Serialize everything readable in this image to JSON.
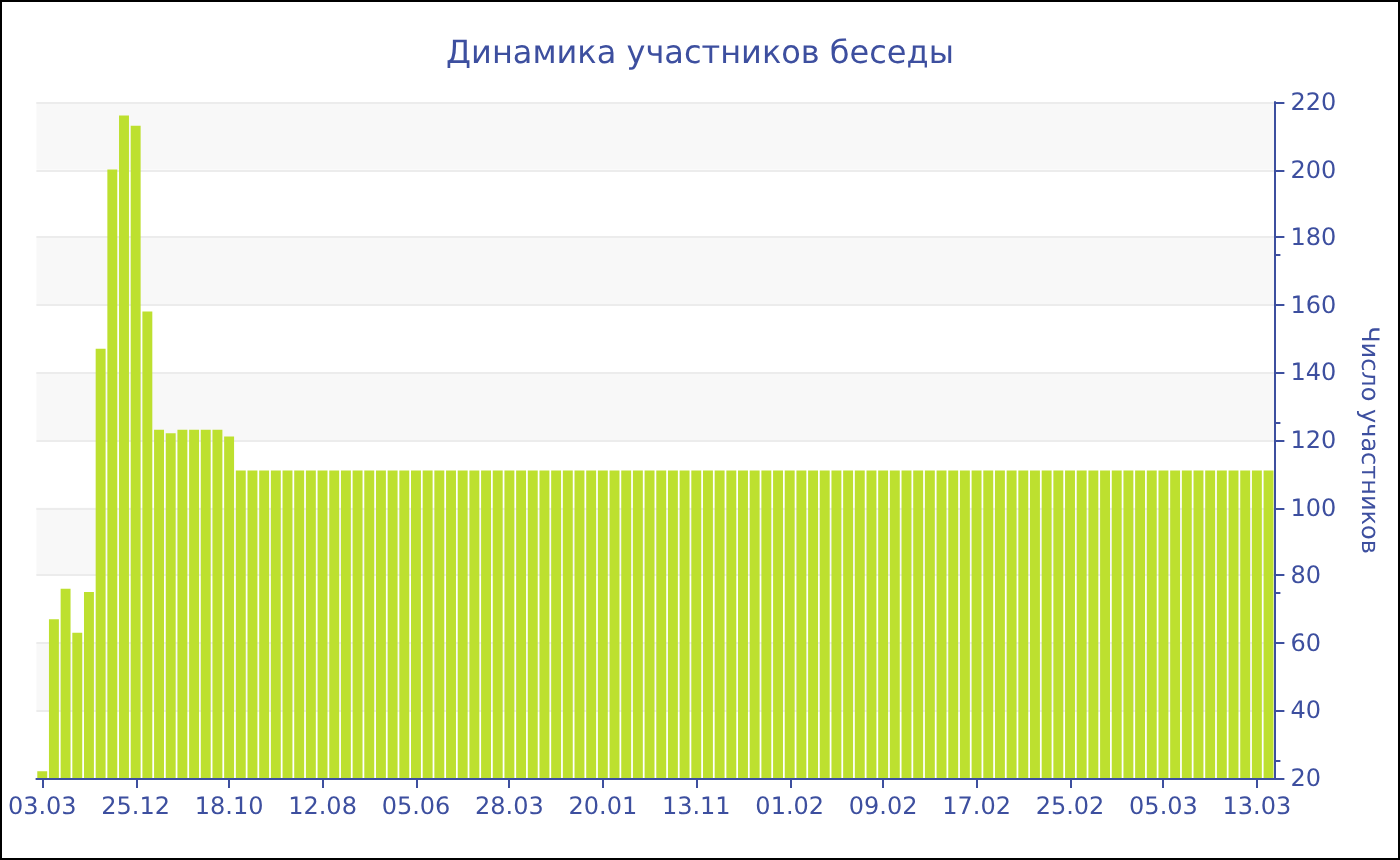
{
  "chart_data": {
    "type": "bar",
    "title": "Динамика участников беседы",
    "ylabel": "Число участников",
    "categories": [
      "03.03",
      null,
      null,
      null,
      null,
      null,
      null,
      null,
      "25.12",
      null,
      null,
      null,
      null,
      null,
      null,
      null,
      "18.10",
      null,
      null,
      null,
      null,
      null,
      null,
      null,
      "12.08",
      null,
      null,
      null,
      null,
      null,
      null,
      null,
      "05.06",
      null,
      null,
      null,
      null,
      null,
      null,
      null,
      "28.03",
      null,
      null,
      null,
      null,
      null,
      null,
      null,
      "20.01",
      null,
      null,
      null,
      null,
      null,
      null,
      null,
      "13.11",
      null,
      null,
      null,
      null,
      null,
      null,
      null,
      "01.02",
      null,
      null,
      null,
      null,
      null,
      null,
      null,
      "09.02",
      null,
      null,
      null,
      null,
      null,
      null,
      null,
      "17.02",
      null,
      null,
      null,
      null,
      null,
      null,
      null,
      "25.02",
      null,
      null,
      null,
      null,
      null,
      null,
      null,
      "05.03",
      null,
      null,
      null,
      null,
      null,
      null,
      null,
      "13.03",
      null
    ],
    "values": [
      22,
      67,
      76,
      63,
      75,
      147,
      200,
      216,
      213,
      158,
      123,
      122,
      123,
      123,
      123,
      123,
      121,
      111,
      111,
      111,
      111,
      111,
      111,
      111,
      111,
      111,
      111,
      111,
      111,
      111,
      111,
      111,
      111,
      111,
      111,
      111,
      111,
      111,
      111,
      111,
      111,
      111,
      111,
      111,
      111,
      111,
      111,
      111,
      111,
      111,
      111,
      111,
      111,
      111,
      111,
      111,
      111,
      111,
      111,
      111,
      111,
      111,
      111,
      111,
      111,
      111,
      111,
      111,
      111,
      111,
      111,
      111,
      111,
      111,
      111,
      111,
      111,
      111,
      111,
      111,
      111,
      111,
      111,
      111,
      111,
      111,
      111,
      111,
      111,
      111,
      111,
      111,
      111,
      111,
      111,
      111,
      111,
      111,
      111,
      111,
      111,
      111,
      111,
      111,
      111,
      111
    ],
    "color": "#bde02f",
    "ylim": [
      20,
      220
    ],
    "yticks": [
      20,
      40,
      60,
      80,
      100,
      120,
      140,
      160,
      180,
      200,
      220
    ],
    "grid": "y"
  }
}
